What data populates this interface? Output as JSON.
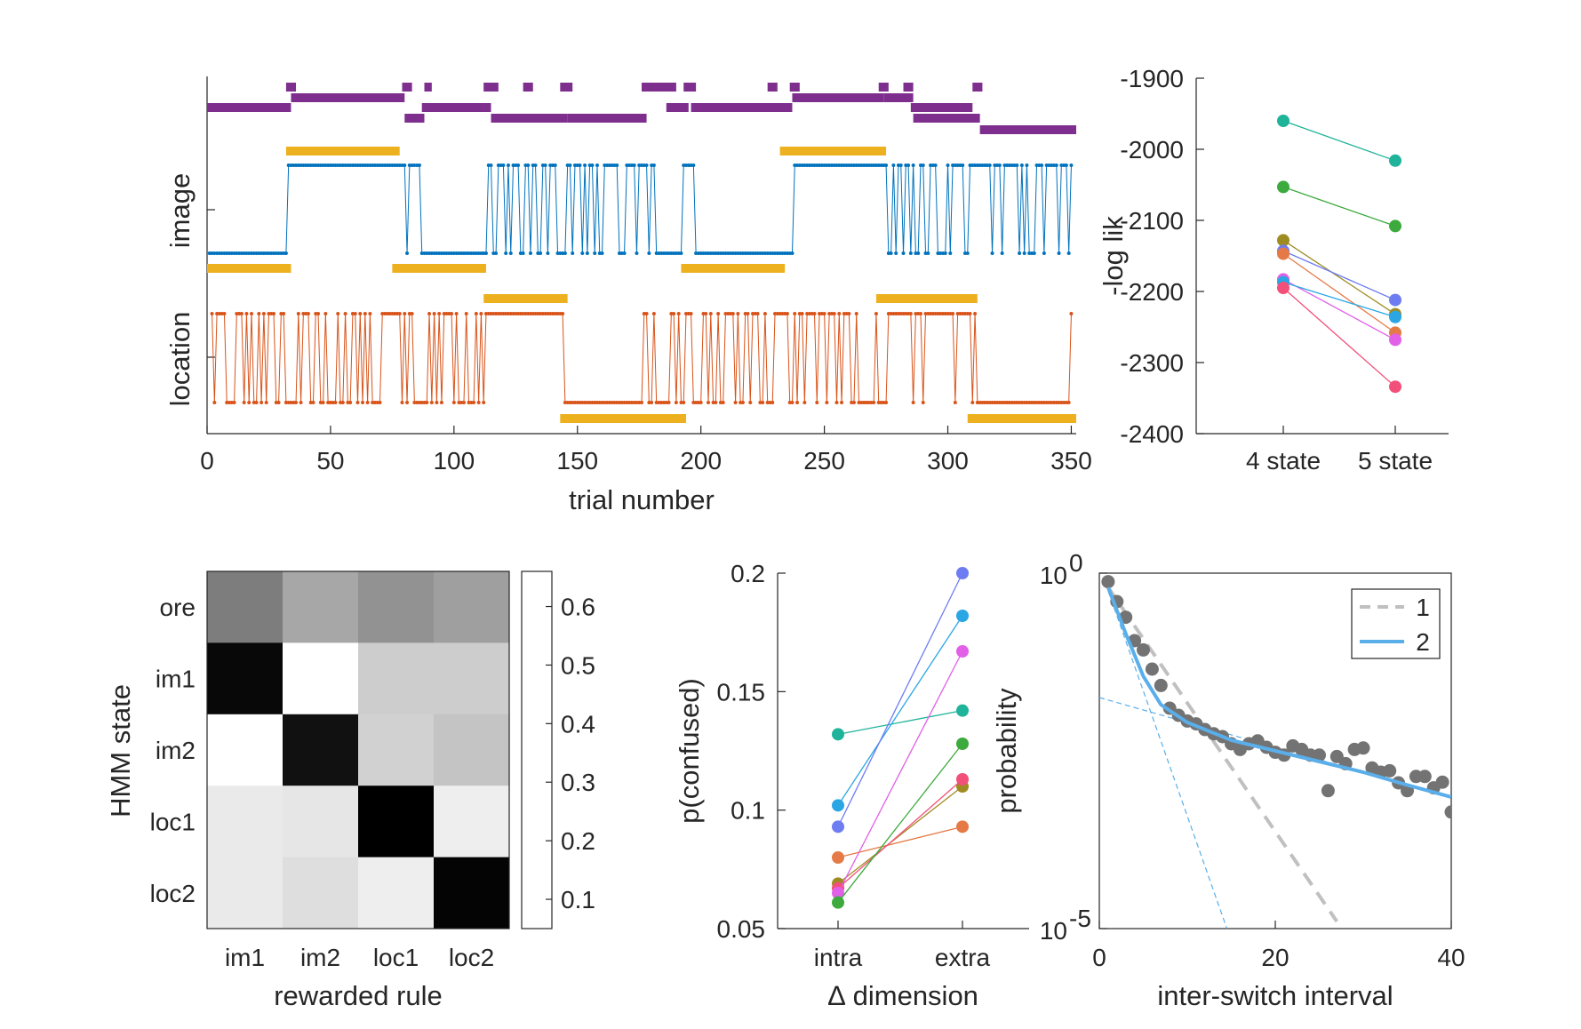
{
  "colors": {
    "image": "#0072BD",
    "location": "#D95319",
    "rule_bar": "#EDB120",
    "hmm": "#7E2F8E",
    "fit1": "#c0c0c0",
    "fit2": "#5AAEEA",
    "points": "#737373"
  },
  "chart_data": [
    {
      "type": "line",
      "panel": "A",
      "xlabel": "trial number",
      "ylabels": [
        "image",
        "location"
      ],
      "xlim": [
        0,
        352
      ],
      "xticks": [
        "0",
        "50",
        "100",
        "150",
        "200",
        "250",
        "300",
        "350"
      ],
      "hmm_segments": {
        "description_levels": [
          "lvl0",
          "lvl1",
          "lvl2",
          "lvl3",
          "lvl4"
        ],
        "lvl0": [
          [
            32,
            36
          ],
          [
            79,
            83
          ],
          [
            88,
            91
          ],
          [
            112,
            118
          ],
          [
            128,
            132
          ],
          [
            143,
            148
          ],
          [
            176,
            190
          ],
          [
            193,
            198
          ],
          [
            227,
            231
          ],
          [
            236,
            240
          ],
          [
            272,
            276
          ],
          [
            282,
            286
          ],
          [
            310,
            314
          ]
        ],
        "lvl1": [
          [
            34,
            80
          ],
          [
            237,
            274
          ],
          [
            274,
            286
          ]
        ],
        "lvl2": [
          [
            0,
            34
          ],
          [
            87,
            115
          ],
          [
            186,
            195
          ],
          [
            196,
            237
          ],
          [
            285,
            310
          ]
        ],
        "lvl3": [
          [
            80,
            88
          ],
          [
            115,
            146
          ],
          [
            146,
            178
          ],
          [
            286,
            313
          ]
        ],
        "lvl4": [
          [
            313,
            352
          ]
        ]
      },
      "image_rule_bars": [
        [
          32,
          78
        ],
        [
          232,
          275
        ]
      ],
      "image_rule_low_bars": [
        [
          0,
          34
        ],
        [
          75,
          113
        ],
        [
          192,
          234
        ]
      ],
      "location_rule_bars": [
        [
          112,
          146
        ],
        [
          271,
          312
        ]
      ],
      "location_rule_low_bars": [
        [
          143,
          194
        ],
        [
          308,
          352
        ]
      ],
      "image_blocks": [
        [
          33,
          80
        ],
        [
          238,
          276
        ]
      ],
      "image_dense": [
        [
          80,
          88
        ],
        [
          113,
          142
        ],
        [
          146,
          190
        ],
        [
          193,
          198
        ],
        [
          276,
          352
        ]
      ],
      "location_low_blocks": [
        [
          145,
          177
        ],
        [
          313,
          350
        ]
      ],
      "location_high_blocks": [
        [
          113,
          145
        ],
        [
          275,
          313
        ]
      ],
      "location_dense": [
        [
          2,
          113
        ],
        [
          177,
          275
        ]
      ]
    },
    {
      "type": "line",
      "panel": "B",
      "ylabel": "-log lik",
      "categories": [
        "4 state",
        "5 state"
      ],
      "ylim": [
        -2400,
        -1900
      ],
      "yticks": [
        "-1900",
        "-2000",
        "-2100",
        "-2200",
        "-2300",
        "-2400"
      ],
      "series": [
        {
          "values": [
            -1960,
            -2016
          ],
          "color": "#1FB39A"
        },
        {
          "values": [
            -2053,
            -2108
          ],
          "color": "#3DAA3D"
        },
        {
          "values": [
            -2128,
            -2232
          ],
          "color": "#9E8C22"
        },
        {
          "values": [
            -2143,
            -2212
          ],
          "color": "#6E7CF2"
        },
        {
          "values": [
            -2147,
            -2258
          ],
          "color": "#E57A47"
        },
        {
          "values": [
            -2183,
            -2268
          ],
          "color": "#E25FE8"
        },
        {
          "values": [
            -2187,
            -2236
          ],
          "color": "#2BA6E5"
        },
        {
          "values": [
            -2195,
            -2334
          ],
          "color": "#F2507A"
        }
      ]
    },
    {
      "type": "heatmap",
      "panel": "C",
      "xlabel": "rewarded rule",
      "ylabel": "HMM state",
      "x_categories": [
        "im1",
        "im2",
        "loc1",
        "loc2"
      ],
      "y_categories": [
        "ore",
        "im1",
        "im2",
        "loc1",
        "loc2"
      ],
      "values": [
        [
          0.36,
          0.26,
          0.31,
          0.28
        ],
        [
          0.64,
          0.0,
          0.17,
          0.17
        ],
        [
          0.0,
          0.62,
          0.16,
          0.19
        ],
        [
          0.1,
          0.11,
          0.66,
          0.09
        ],
        [
          0.1,
          0.13,
          0.09,
          0.65
        ]
      ],
      "colorbar_ticks": [
        "0.6",
        "0.5",
        "0.4",
        "0.3",
        "0.2",
        "0.1"
      ],
      "clim": [
        0.05,
        0.66
      ]
    },
    {
      "type": "line",
      "panel": "D",
      "xlabel": "∆ dimension",
      "ylabel": "p(confused)",
      "categories": [
        "intra",
        "extra"
      ],
      "ylim": [
        0.05,
        0.2
      ],
      "yticks": [
        "0.2",
        "0.15",
        "0.1",
        "0.05"
      ],
      "series": [
        {
          "values": [
            0.132,
            0.142
          ],
          "color": "#1FB39A"
        },
        {
          "values": [
            0.102,
            0.182
          ],
          "color": "#2BA6E5"
        },
        {
          "values": [
            0.093,
            0.2
          ],
          "color": "#6E7CF2"
        },
        {
          "values": [
            0.08,
            0.093
          ],
          "color": "#E57A47"
        },
        {
          "values": [
            0.069,
            0.11
          ],
          "color": "#9E8C22"
        },
        {
          "values": [
            0.067,
            0.113
          ],
          "color": "#F2507A"
        },
        {
          "values": [
            0.065,
            0.167
          ],
          "color": "#E25FE8"
        },
        {
          "values": [
            0.061,
            0.128
          ],
          "color": "#3DAA3D"
        }
      ]
    },
    {
      "type": "scatter",
      "panel": "E",
      "xlabel": "inter-switch interval",
      "ylabel": "probability",
      "xlim": [
        0,
        40
      ],
      "ylim_log10": [
        -5,
        0
      ],
      "xticks": [
        "0",
        "20",
        "40"
      ],
      "ytick_base": "10",
      "ytick_exps": [
        "0",
        "-5"
      ],
      "legend": [
        "1",
        "2"
      ],
      "legend_position": "top-right",
      "points_log10": [
        [
          1,
          -0.12
        ],
        [
          2,
          -0.4
        ],
        [
          3,
          -0.62
        ],
        [
          4,
          -0.95
        ],
        [
          5,
          -1.08
        ],
        [
          6,
          -1.35
        ],
        [
          7,
          -1.58
        ],
        [
          8,
          -1.9
        ],
        [
          9,
          -2.0
        ],
        [
          10,
          -2.08
        ],
        [
          11,
          -2.12
        ],
        [
          12,
          -2.2
        ],
        [
          13,
          -2.26
        ],
        [
          14,
          -2.3
        ],
        [
          15,
          -2.4
        ],
        [
          16,
          -2.48
        ],
        [
          17,
          -2.4
        ],
        [
          18,
          -2.36
        ],
        [
          19,
          -2.45
        ],
        [
          20,
          -2.52
        ],
        [
          21,
          -2.56
        ],
        [
          22,
          -2.43
        ],
        [
          23,
          -2.48
        ],
        [
          24,
          -2.56
        ],
        [
          25,
          -2.56
        ],
        [
          26,
          -3.06
        ],
        [
          27,
          -2.58
        ],
        [
          28,
          -2.68
        ],
        [
          29,
          -2.48
        ],
        [
          30,
          -2.46
        ],
        [
          31,
          -2.74
        ],
        [
          32,
          -2.8
        ],
        [
          33,
          -2.78
        ],
        [
          34,
          -2.95
        ],
        [
          35,
          -3.06
        ],
        [
          36,
          -2.86
        ],
        [
          37,
          -2.86
        ],
        [
          38,
          -3.02
        ],
        [
          39,
          -2.94
        ],
        [
          40,
          -3.36
        ]
      ],
      "fit1_log10": [
        [
          1,
          -0.2
        ],
        [
          27,
          -4.9
        ]
      ],
      "fit2_log10": [
        [
          1,
          -0.2
        ],
        [
          3,
          -0.85
        ],
        [
          5,
          -1.45
        ],
        [
          7,
          -1.85
        ],
        [
          10,
          -2.1
        ],
        [
          15,
          -2.35
        ],
        [
          20,
          -2.5
        ],
        [
          25,
          -2.65
        ],
        [
          30,
          -2.8
        ],
        [
          35,
          -2.98
        ],
        [
          40,
          -3.15
        ]
      ],
      "comp_fast_log10": [
        [
          1,
          -0.25
        ],
        [
          14.5,
          -5
        ]
      ],
      "comp_slow_log10": [
        [
          0,
          -1.75
        ],
        [
          40,
          -3.15
        ]
      ]
    }
  ]
}
